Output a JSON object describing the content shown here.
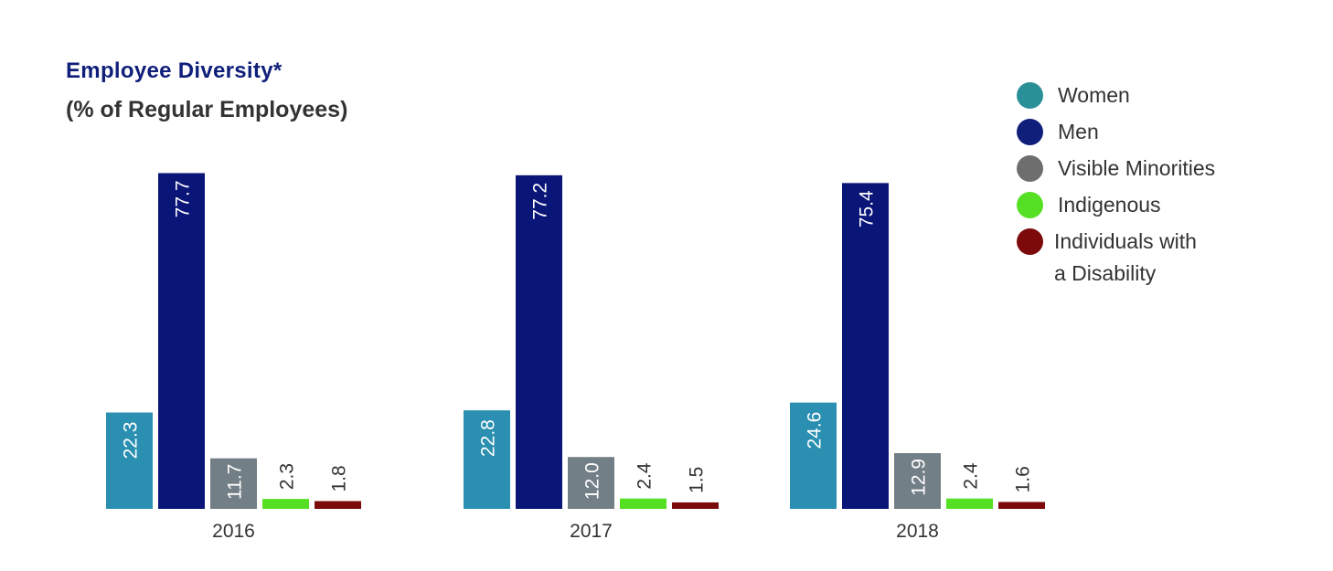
{
  "title": "Employee Diversity*",
  "subtitle": "(% of Regular Employees)",
  "chart_data": {
    "type": "bar",
    "title": "Employee Diversity*",
    "subtitle": "(% of Regular Employees)",
    "xlabel": "",
    "ylabel": "",
    "categories": [
      "2016",
      "2017",
      "2018"
    ],
    "series": [
      {
        "name": "Women",
        "color": "#2a8fb0",
        "values": [
          22.3,
          22.8,
          24.6
        ],
        "labels": [
          "22.3",
          "22.8",
          "24.6"
        ]
      },
      {
        "name": "Men",
        "color": "#0a1578",
        "values": [
          77.7,
          77.2,
          75.4
        ],
        "labels": [
          "77.7",
          "77.2",
          "75.4"
        ]
      },
      {
        "name": "Visible Minorities",
        "color": "#737f86",
        "values": [
          11.7,
          12.0,
          12.9
        ],
        "labels": [
          "11.7",
          "12.0",
          "12.9"
        ]
      },
      {
        "name": "Indigenous",
        "color": "#55e023",
        "values": [
          2.3,
          2.4,
          2.4
        ],
        "labels": [
          "2.3",
          "2.4",
          "2.4"
        ]
      },
      {
        "name": "Individuals with a Disability",
        "color": "#7d0a0a",
        "values": [
          1.8,
          1.5,
          1.6
        ],
        "labels": [
          "1.8",
          "1.5",
          "1.6"
        ]
      }
    ],
    "ylim": [
      0,
      80
    ],
    "grid": false,
    "legend_position": "top-right"
  },
  "legend": [
    {
      "label": "Women",
      "color": "#2a9097",
      "icon": "circle"
    },
    {
      "label": "Men",
      "color": "#0f1f7a",
      "icon": "circle"
    },
    {
      "label": "Visible Minorities",
      "color": "#6e6e6e",
      "icon": "circle"
    },
    {
      "label": "Indigenous",
      "color": "#55e023",
      "icon": "circle"
    },
    {
      "label": "Individuals with\na Disability",
      "color": "#7d0a0a",
      "icon": "circle"
    }
  ]
}
